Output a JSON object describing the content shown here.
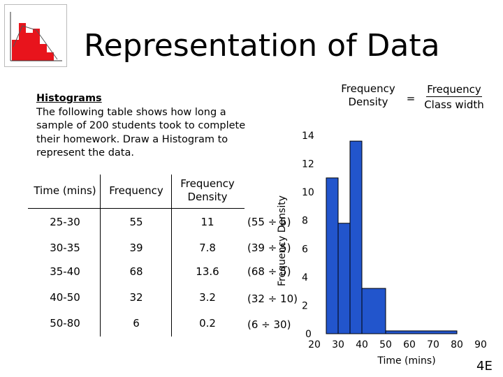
{
  "slide": {
    "title": "Representation of Data",
    "section_heading": "Histograms",
    "intro_text": "The following table shows how long a sample of 200 students took to complete their homework. Draw a Histogram to represent the data.",
    "footer_code": "4E"
  },
  "formula": {
    "lhs": "Frequency\nDensity",
    "equals": "=",
    "numerator": "Frequency",
    "denominator": "Class width"
  },
  "table": {
    "headers": [
      "Time (mins)",
      "Frequency",
      "Frequency\nDensity"
    ],
    "rows": [
      {
        "time": "25-30",
        "frequency": "55",
        "density": "11",
        "working": "(55 ÷ 5)"
      },
      {
        "time": "30-35",
        "frequency": "39",
        "density": "7.8",
        "working": "(39 ÷ 5)"
      },
      {
        "time": "35-40",
        "frequency": "68",
        "density": "13.6",
        "working": "(68 ÷ 5)"
      },
      {
        "time": "40-50",
        "frequency": "32",
        "density": "3.2",
        "working": "(32 ÷ 10)"
      },
      {
        "time": "50-80",
        "frequency": "6",
        "density": "0.2",
        "working": "(6 ÷ 30)"
      }
    ]
  },
  "chart_data": {
    "type": "bar",
    "xlabel": "Time (mins)",
    "ylabel": "Frequency Density",
    "xlim": [
      20,
      90
    ],
    "ylim": [
      0,
      14
    ],
    "x_ticks": [
      "20",
      "30",
      "40",
      "50",
      "60",
      "70",
      "80",
      "90"
    ],
    "y_ticks": [
      "0",
      "2",
      "4",
      "6",
      "8",
      "10",
      "12",
      "14"
    ],
    "bars": [
      {
        "from": 25,
        "to": 30,
        "value": 11
      },
      {
        "from": 30,
        "to": 35,
        "value": 7.8
      },
      {
        "from": 35,
        "to": 40,
        "value": 13.6
      },
      {
        "from": 40,
        "to": 50,
        "value": 3.2
      },
      {
        "from": 50,
        "to": 80,
        "value": 0.2
      }
    ],
    "bar_color": "#2255cc",
    "grid": false
  },
  "colors": {
    "thumbnail_bars": "#e8141c"
  }
}
